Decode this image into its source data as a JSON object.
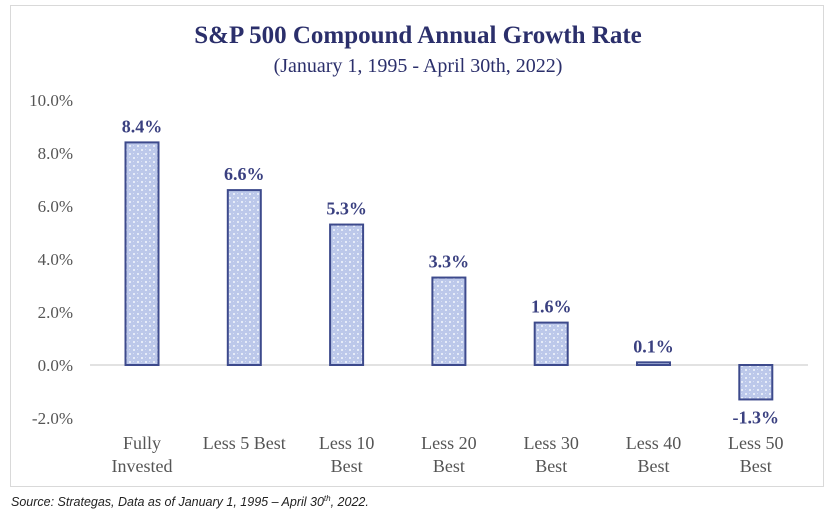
{
  "chart_data": {
    "type": "bar",
    "title": "S&P 500 Compound Annual Growth Rate",
    "subtitle": "(January 1, 1995 - April 30th, 2022)",
    "xlabel": "",
    "ylabel": "",
    "categories": [
      [
        "Fully",
        "Invested"
      ],
      [
        "Less 5 Best"
      ],
      [
        "Less 10",
        "Best"
      ],
      [
        "Less 20",
        "Best"
      ],
      [
        "Less 30",
        "Best"
      ],
      [
        "Less 40",
        "Best"
      ],
      [
        "Less 50",
        "Best"
      ]
    ],
    "values": [
      8.4,
      6.6,
      5.3,
      3.3,
      1.6,
      0.1,
      -1.3
    ],
    "data_labels": [
      "8.4%",
      "6.6%",
      "5.3%",
      "3.3%",
      "1.6%",
      "0.1%",
      "-1.3%"
    ],
    "ylim": [
      -2.0,
      10.0
    ],
    "yticks": [
      10.0,
      8.0,
      6.0,
      4.0,
      2.0,
      0.0,
      -2.0
    ],
    "ytick_labels": [
      "10.0%",
      "8.0%",
      "6.0%",
      "4.0%",
      "2.0%",
      "0.0%",
      "-2.0%"
    ],
    "grid": false,
    "legend": "none",
    "colors": {
      "bar_fill": "#bcc8ea",
      "bar_pattern": "#e6ecf8",
      "bar_border": "#3d4a8c",
      "title": "#2b2f6b",
      "data_label": "#3a4080",
      "tick_label": "#555555",
      "zero_line": "#d9d9d9"
    }
  },
  "source": {
    "prefix": "Source: Strategas, Data as of January 1, 1995 – April 30",
    "sup": "th",
    "suffix": ", 2022."
  }
}
